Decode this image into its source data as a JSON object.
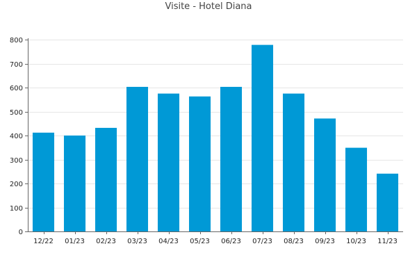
{
  "chart_data": {
    "type": "bar",
    "title": "Visite - Hotel Diana",
    "categories": [
      "12/22",
      "01/23",
      "02/23",
      "03/23",
      "04/23",
      "05/23",
      "06/23",
      "07/23",
      "08/23",
      "09/23",
      "10/23",
      "11/23"
    ],
    "values": [
      412,
      400,
      432,
      603,
      575,
      563,
      603,
      778,
      575,
      471,
      349,
      241
    ],
    "ylim": [
      0,
      800
    ],
    "yticks": [
      0,
      100,
      200,
      300,
      400,
      500,
      600,
      700,
      800
    ],
    "ytick_labels": [
      "0",
      "100",
      "200",
      "300",
      "400",
      "500",
      "600",
      "700",
      "800"
    ],
    "grid": true,
    "bar_color": "#0099d6",
    "grid_color": "#e6e6e6",
    "axis_color": "#666666"
  }
}
